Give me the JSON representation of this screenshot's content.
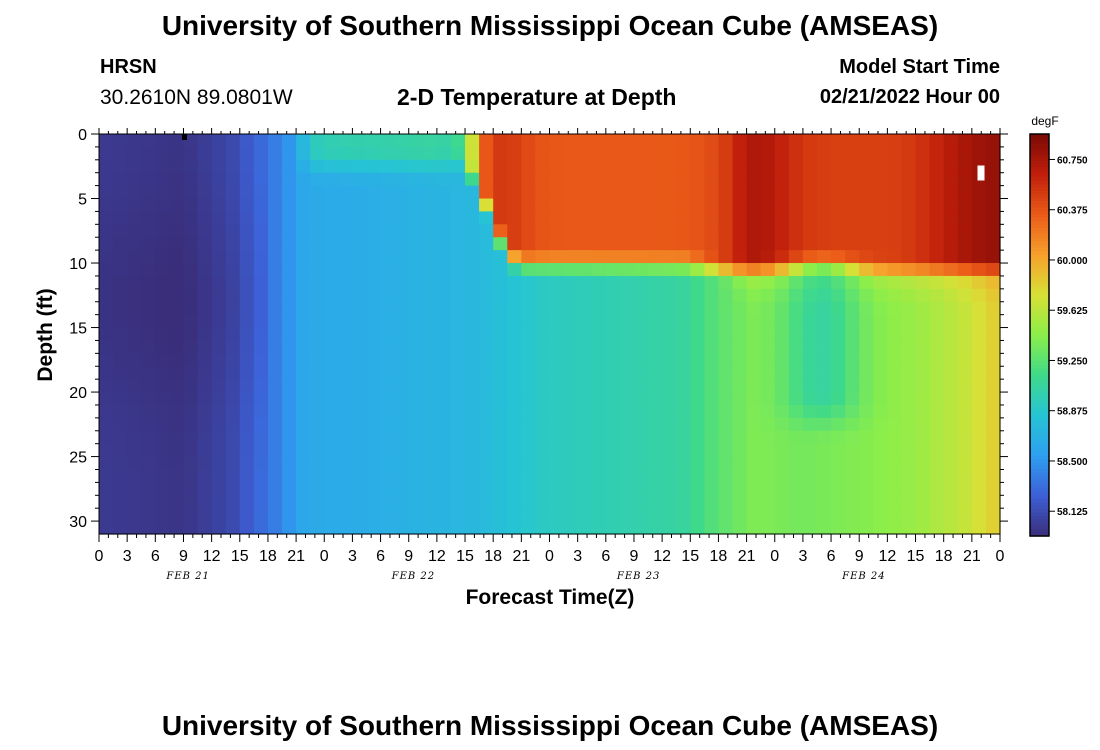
{
  "header": {
    "title": "University of Southern Mississippi Ocean Cube (AMSEAS)",
    "station": "HRSN",
    "coords": "30.2610N  89.0801W",
    "subtitle": "2-D Temperature at Depth",
    "model_label": "Model Start Time",
    "model_time": "02/21/2022 Hour 00"
  },
  "footer": {
    "title": "University of Southern Mississippi Ocean Cube (AMSEAS)"
  },
  "chart_data": {
    "type": "heatmap",
    "title": "2-D Temperature at Depth",
    "xlabel": "Forecast Time(Z)",
    "ylabel": "Depth (ft)",
    "ylim": [
      0,
      31
    ],
    "y_ticks": [
      0,
      5,
      10,
      15,
      20,
      25,
      30
    ],
    "x_range_hours": [
      0,
      96
    ],
    "x_tick_labels": [
      "0",
      "3",
      "6",
      "9",
      "12",
      "15",
      "18",
      "21",
      "0",
      "3",
      "6",
      "9",
      "12",
      "15",
      "18",
      "21",
      "0",
      "3",
      "6",
      "9",
      "12",
      "15",
      "18",
      "21",
      "0",
      "3",
      "6",
      "9",
      "12",
      "15",
      "18",
      "21",
      "0"
    ],
    "day_labels": [
      "FEB 21",
      "FEB 22",
      "FEB 23",
      "FEB 24"
    ],
    "colorbar": {
      "unit": "degF",
      "range": [
        57.94,
        60.94
      ],
      "tick_labels": [
        "60.750",
        "60.375",
        "60.000",
        "59.625",
        "59.250",
        "58.875",
        "58.500",
        "58.125"
      ],
      "colors": [
        "#3a2e7a",
        "#3d5fd6",
        "#2e9ff0",
        "#26c4d4",
        "#3fd98a",
        "#8bee4a",
        "#d8e036",
        "#f6a02c",
        "#ea5a18",
        "#c01e0a",
        "#7a0a06"
      ]
    },
    "grid": false,
    "legend": "colorbar-right",
    "description_of_field": {
      "note": "cold (<58.1) hours 0-20, cyan/green hours 20-42, warm layer (>60.0) near surface after hour 42 down to ~10 ft, green tongue at 10-22 ft around hours 72-80, bottom warming to ~59.8 by hour 96"
    }
  }
}
